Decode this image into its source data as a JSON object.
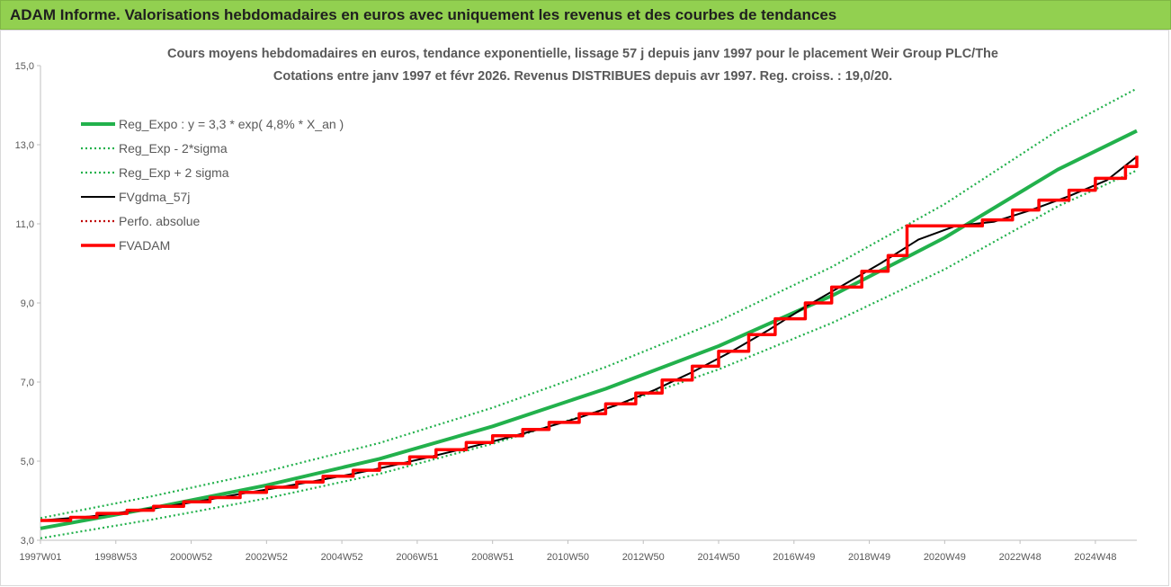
{
  "header": {
    "banner": "ADAM Informe. Valorisations hebdomadaires en euros avec uniquement les revenus et des courbes de tendances"
  },
  "colors": {
    "banner_bg": "#92d050",
    "reg_expo": "#22b14c",
    "sigma_bands": "#22b14c",
    "fvgdma": "#000000",
    "perfo": "#c00000",
    "fvadam": "#ff0000"
  },
  "chart_data": {
    "type": "line",
    "title": "Cours moyens hebdomadaires en euros, tendance exponentielle, lissage 57 j depuis janv 1997 pour le placement Weir Group PLC/The",
    "subtitle": "Cotations entre janv 1997 et févr 2026. Revenus DISTRIBUES depuis avr 1997. Reg. croiss. : 19,0/20.",
    "xlabel": "",
    "ylabel": "",
    "ylim": [
      3.0,
      15.0
    ],
    "y_ticks": [
      "3,0",
      "5,0",
      "7,0",
      "9,0",
      "11,0",
      "13,0",
      "15,0"
    ],
    "x_range": [
      1997.0,
      2026.1
    ],
    "x_ticks": [
      {
        "label": "1997W01",
        "year": 1997.0
      },
      {
        "label": "1998W53",
        "year": 1999.0
      },
      {
        "label": "2000W52",
        "year": 2001.0
      },
      {
        "label": "2002W52",
        "year": 2003.0
      },
      {
        "label": "2004W52",
        "year": 2005.0
      },
      {
        "label": "2006W51",
        "year": 2007.0
      },
      {
        "label": "2008W51",
        "year": 2009.0
      },
      {
        "label": "2010W50",
        "year": 2011.0
      },
      {
        "label": "2012W50",
        "year": 2013.0
      },
      {
        "label": "2014W50",
        "year": 2015.0
      },
      {
        "label": "2016W49",
        "year": 2017.0
      },
      {
        "label": "2018W49",
        "year": 2019.0
      },
      {
        "label": "2020W49",
        "year": 2021.0
      },
      {
        "label": "2022W48",
        "year": 2023.0
      },
      {
        "label": "2024W48",
        "year": 2025.0
      }
    ],
    "legend_position": "top-left",
    "grid": false,
    "series": [
      {
        "name": "Reg_Expo : y = 3,3 * exp( 4,8% *  X_an )",
        "style": "solid-thick",
        "color": "#22b14c",
        "x": [
          1997.0,
          2000.0,
          2003.0,
          2006.0,
          2009.0,
          2012.0,
          2015.0,
          2018.0,
          2021.0,
          2024.0,
          2026.1
        ],
        "y": [
          3.3,
          3.82,
          4.39,
          5.06,
          5.88,
          6.83,
          7.91,
          9.18,
          10.65,
          12.37,
          13.35
        ]
      },
      {
        "name": "Reg_Exp - 2*sigma",
        "style": "dotted",
        "color": "#22b14c",
        "x": [
          1997.0,
          2000.0,
          2003.0,
          2006.0,
          2009.0,
          2012.0,
          2015.0,
          2018.0,
          2021.0,
          2024.0,
          2026.1
        ],
        "y": [
          3.05,
          3.53,
          4.06,
          4.68,
          5.44,
          6.32,
          7.32,
          8.49,
          9.85,
          11.44,
          12.35
        ]
      },
      {
        "name": "Reg_Exp + 2 sigma",
        "style": "dotted",
        "color": "#22b14c",
        "x": [
          1997.0,
          2000.0,
          2003.0,
          2006.0,
          2009.0,
          2012.0,
          2015.0,
          2018.0,
          2021.0,
          2024.0,
          2026.1
        ],
        "y": [
          3.56,
          4.12,
          4.74,
          5.46,
          6.35,
          7.38,
          8.54,
          9.91,
          11.5,
          13.36,
          14.42
        ]
      },
      {
        "name": "FVgdma_57j",
        "style": "solid",
        "color": "#000000",
        "x": [
          1997.0,
          1998.3,
          1999.3,
          2000.3,
          2001.3,
          2002.3,
          2003.3,
          2004.3,
          2005.3,
          2006.3,
          2007.3,
          2008.3,
          2009.3,
          2010.3,
          2011.3,
          2012.3,
          2013.3,
          2014.3,
          2015.3,
          2016.3,
          2017.3,
          2018.3,
          2019.3,
          2020.3,
          2021.3,
          2022.3,
          2023.3,
          2024.3,
          2025.3,
          2026.1
        ],
        "y": [
          3.5,
          3.6,
          3.72,
          3.85,
          4.0,
          4.17,
          4.33,
          4.5,
          4.68,
          4.88,
          5.1,
          5.33,
          5.57,
          5.82,
          6.1,
          6.42,
          6.8,
          7.25,
          7.75,
          8.3,
          8.9,
          9.45,
          10.0,
          10.6,
          10.95,
          11.05,
          11.35,
          11.7,
          12.1,
          12.7
        ]
      },
      {
        "name": "Perfo. absolue",
        "style": "dotted",
        "color": "#c00000",
        "x": [
          1997.0,
          2026.1
        ],
        "y": [
          3.5,
          12.7
        ]
      },
      {
        "name": "FVADAM",
        "style": "step-thick",
        "color": "#ff0000",
        "x": [
          1997.0,
          1997.8,
          1998.5,
          1999.3,
          2000.0,
          2000.8,
          2001.5,
          2002.3,
          2003.0,
          2003.8,
          2004.5,
          2005.3,
          2006.0,
          2006.8,
          2007.5,
          2008.3,
          2009.0,
          2009.8,
          2010.5,
          2011.3,
          2012.0,
          2012.8,
          2013.5,
          2014.3,
          2015.0,
          2015.8,
          2016.5,
          2017.3,
          2018.0,
          2018.8,
          2019.5,
          2020.0,
          2021.3,
          2022.0,
          2022.8,
          2023.5,
          2024.3,
          2025.0,
          2025.8,
          2026.1
        ],
        "y": [
          3.5,
          3.58,
          3.68,
          3.76,
          3.86,
          3.97,
          4.08,
          4.21,
          4.34,
          4.47,
          4.62,
          4.77,
          4.94,
          5.11,
          5.29,
          5.47,
          5.64,
          5.8,
          5.98,
          6.2,
          6.45,
          6.72,
          7.05,
          7.4,
          7.78,
          8.2,
          8.6,
          9.0,
          9.4,
          9.8,
          10.2,
          10.95,
          10.95,
          11.1,
          11.35,
          11.6,
          11.85,
          12.15,
          12.45,
          12.72
        ]
      }
    ]
  }
}
